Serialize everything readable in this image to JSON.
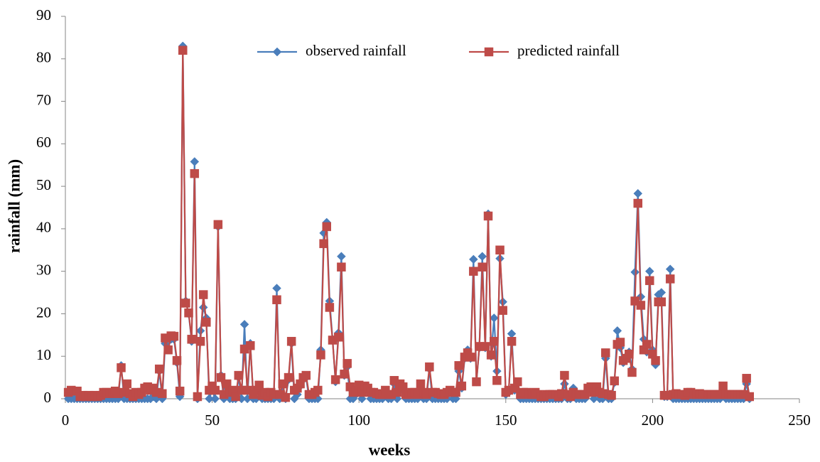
{
  "chart_data": {
    "type": "line",
    "x_label": "weeks",
    "y_label": "rainfall (mm)",
    "xlim": [
      0,
      250
    ],
    "xticks": [
      0,
      50,
      100,
      150,
      200,
      250
    ],
    "ylim": [
      0,
      90
    ],
    "yticks": [
      0,
      10,
      20,
      30,
      40,
      50,
      60,
      70,
      80,
      90
    ],
    "legend": "top",
    "grid": false,
    "x": [
      1,
      2,
      3,
      4,
      5,
      6,
      7,
      8,
      9,
      10,
      11,
      12,
      13,
      14,
      15,
      16,
      17,
      18,
      19,
      20,
      21,
      22,
      23,
      24,
      25,
      26,
      27,
      28,
      29,
      30,
      31,
      32,
      33,
      34,
      35,
      36,
      37,
      38,
      39,
      40,
      41,
      42,
      43,
      44,
      45,
      46,
      47,
      48,
      49,
      50,
      51,
      52,
      53,
      54,
      55,
      56,
      57,
      58,
      59,
      60,
      61,
      62,
      63,
      64,
      65,
      66,
      67,
      68,
      69,
      70,
      71,
      72,
      73,
      74,
      75,
      76,
      77,
      78,
      79,
      80,
      81,
      82,
      83,
      84,
      85,
      86,
      87,
      88,
      89,
      90,
      91,
      92,
      93,
      94,
      95,
      96,
      97,
      98,
      99,
      100,
      101,
      102,
      103,
      104,
      105,
      106,
      107,
      108,
      109,
      110,
      111,
      112,
      113,
      114,
      115,
      116,
      117,
      118,
      119,
      120,
      121,
      122,
      123,
      124,
      125,
      126,
      127,
      128,
      129,
      130,
      131,
      132,
      133,
      134,
      135,
      136,
      137,
      138,
      139,
      140,
      141,
      142,
      143,
      144,
      145,
      146,
      147,
      148,
      149,
      150,
      151,
      152,
      153,
      154,
      155,
      156,
      157,
      158,
      159,
      160,
      161,
      162,
      163,
      164,
      165,
      166,
      167,
      168,
      169,
      170,
      171,
      172,
      173,
      174,
      175,
      176,
      177,
      178,
      179,
      180,
      181,
      182,
      183,
      184,
      185,
      186,
      187,
      188,
      189,
      190,
      191,
      192,
      193,
      194,
      195,
      196,
      197,
      198,
      199,
      200,
      201,
      202,
      203,
      204,
      205,
      206,
      207,
      208,
      209,
      210,
      211,
      212,
      213,
      214,
      215,
      216,
      217,
      218,
      219,
      220,
      221,
      222,
      223,
      224,
      225,
      226,
      227,
      228,
      229,
      230,
      231,
      232,
      233
    ],
    "series": [
      {
        "name": "observed rainfall",
        "color": "#4a7ebb",
        "marker": "diamond",
        "values": [
          0,
          0,
          0,
          0,
          0,
          0,
          0,
          0,
          0,
          0,
          0,
          0,
          0,
          0,
          0,
          0,
          0,
          0,
          7.8,
          0,
          0,
          0,
          0,
          0,
          0,
          0,
          0,
          0,
          0,
          0.5,
          0,
          6.5,
          0,
          13,
          12,
          14,
          14,
          8.5,
          0.5,
          83,
          23,
          20,
          13.5,
          55.8,
          0,
          16,
          21.5,
          19,
          0,
          2,
          0,
          40.5,
          5.5,
          0,
          2.5,
          0,
          0,
          0,
          5,
          0,
          17.5,
          0,
          13,
          0,
          0,
          3,
          0,
          0,
          0,
          0,
          0,
          26,
          0,
          3,
          0,
          4.5,
          13,
          0,
          1,
          3,
          4.5,
          5,
          0,
          0,
          0,
          0,
          11.5,
          39,
          41.5,
          23,
          14,
          4,
          15.5,
          33.5,
          5.5,
          7.5,
          0,
          0,
          1,
          2.5,
          0,
          2,
          2,
          0,
          0,
          0,
          0,
          0,
          1,
          0,
          0,
          3.5,
          0,
          3,
          2,
          0,
          0,
          0,
          0,
          0,
          3,
          0,
          0,
          7,
          0,
          0,
          0,
          0,
          0,
          0,
          1.5,
          0,
          0,
          6.5,
          2.5,
          9.5,
          11.5,
          9.5,
          32.8,
          4,
          12,
          33.5,
          12,
          43.5,
          10,
          19,
          6.5,
          33,
          22.8,
          1,
          1.5,
          15.3,
          2,
          3.5,
          0,
          0,
          0,
          0,
          0,
          0,
          0,
          0,
          0,
          0,
          0,
          0,
          0,
          0,
          0,
          3.5,
          0,
          0,
          2.5,
          0,
          0,
          0,
          0,
          2,
          2.5,
          0,
          2,
          0,
          0,
          9.5,
          0,
          0,
          3.8,
          16,
          12,
          8.5,
          10,
          11,
          7,
          29.8,
          48.3,
          24,
          14,
          11,
          30,
          11.5,
          8,
          24.5,
          25,
          0.5,
          0.5,
          30.5,
          0,
          0,
          0,
          0,
          0,
          0,
          0,
          0,
          0,
          0,
          0,
          0,
          0,
          0,
          0,
          0,
          0,
          2.5,
          0,
          0,
          0,
          0,
          0,
          0,
          0,
          3.5,
          0
        ]
      },
      {
        "name": "predicted rainfall",
        "color": "#be4b48",
        "marker": "square",
        "values": [
          1.5,
          2,
          1.8,
          1.8,
          0.5,
          0.8,
          0.5,
          0.8,
          0.5,
          0.8,
          0.5,
          0.8,
          1.5,
          1.5,
          1.2,
          1.5,
          1.8,
          1.2,
          7.3,
          1.5,
          3.5,
          1.2,
          0.5,
          1.5,
          1,
          1.5,
          2.5,
          2.8,
          2,
          2.5,
          1.5,
          7,
          1.2,
          14.3,
          11.5,
          14.8,
          14.7,
          9,
          1.8,
          82,
          22.5,
          20.2,
          14,
          53,
          0.5,
          13.5,
          24.5,
          18,
          2,
          3,
          2,
          41,
          5,
          1,
          3.5,
          1.5,
          2,
          0.5,
          5.5,
          2,
          11.7,
          2,
          12.5,
          1,
          2,
          3.2,
          0.8,
          1.5,
          0.5,
          1.5,
          1,
          23.3,
          1,
          3.5,
          0.3,
          5,
          13.5,
          2,
          2.5,
          3.5,
          5,
          5.5,
          1,
          1,
          1.5,
          2,
          10.3,
          36.5,
          40.5,
          21.5,
          13.8,
          4.5,
          14.5,
          31,
          5.8,
          8.3,
          2.8,
          1.5,
          2,
          3.2,
          1.5,
          3,
          2.5,
          1.5,
          1.5,
          1.2,
          1,
          1,
          2,
          1,
          1,
          4.3,
          1.5,
          3.5,
          2.8,
          1,
          1,
          1.5,
          1.5,
          1,
          3.5,
          1.5,
          1,
          7.5,
          1.5,
          1.5,
          1.2,
          1,
          1,
          1.5,
          2,
          1.5,
          1.5,
          7.8,
          3,
          9.8,
          10.8,
          9.8,
          30,
          4,
          12.3,
          31,
          12.3,
          43,
          10.3,
          13.5,
          4.3,
          35,
          20.8,
          1.5,
          2,
          13.5,
          2.5,
          4,
          1,
          1.5,
          1.5,
          1,
          1,
          1.5,
          1,
          0.5,
          0.5,
          1,
          1,
          1,
          1,
          0.5,
          1.2,
          5.5,
          1,
          0.5,
          1.5,
          1,
          1,
          1,
          1,
          2.5,
          2.8,
          1.5,
          2.8,
          1.5,
          1.2,
          10.8,
          1,
          0.8,
          4.2,
          12.8,
          13.3,
          9,
          9.5,
          10.5,
          6.2,
          23,
          46,
          22,
          11.5,
          12.8,
          27.8,
          10.5,
          9,
          22.8,
          22.8,
          0.8,
          0.8,
          28.2,
          1,
          1.2,
          1,
          1,
          0.8,
          1.5,
          1.5,
          1,
          1,
          1.2,
          1,
          1,
          1,
          1,
          1,
          1,
          1,
          3,
          1,
          1,
          1,
          1,
          1,
          1,
          1,
          4.8,
          0.5
        ]
      }
    ]
  }
}
